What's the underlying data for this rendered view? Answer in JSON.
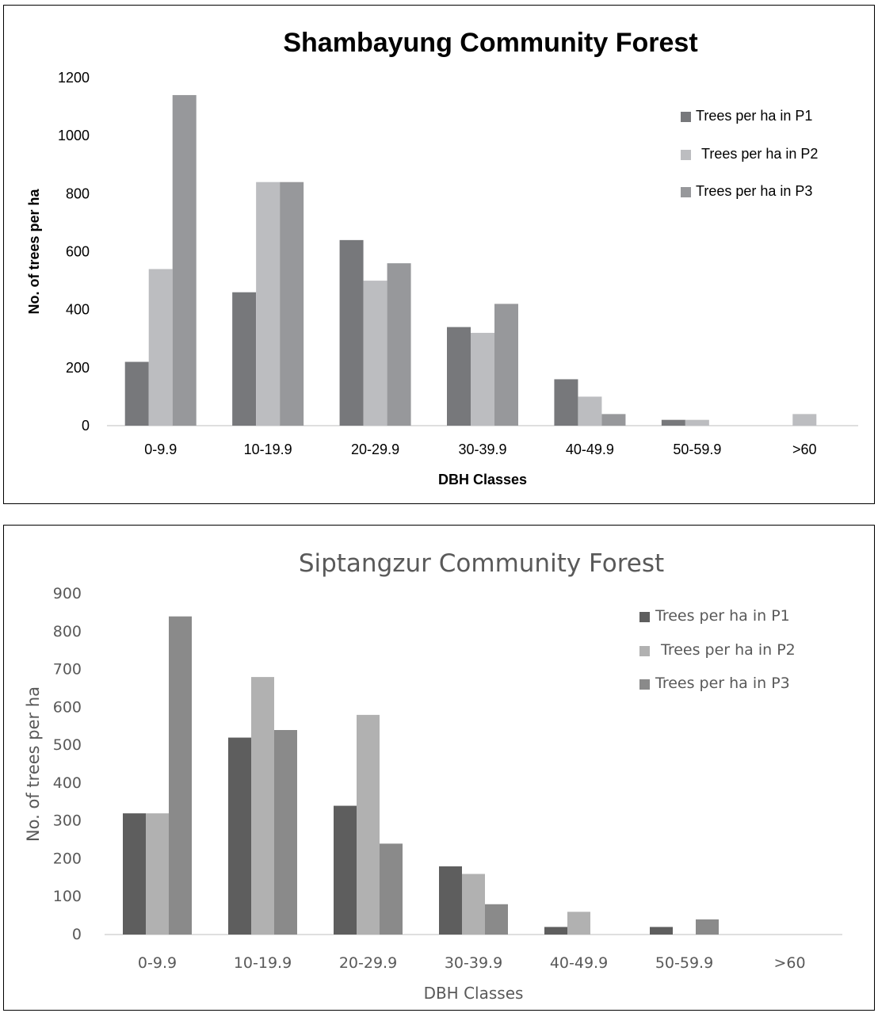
{
  "chart_data": [
    {
      "type": "bar",
      "title": "Shambayung Community Forest",
      "xlabel": "DBH Classes",
      "ylabel": "No. of trees per ha",
      "ylim": [
        0,
        1200
      ],
      "yticks": [
        0,
        200,
        400,
        600,
        800,
        1000,
        1200
      ],
      "categories": [
        "0-9.9",
        "10-19.9",
        "20-29.9",
        "30-39.9",
        "40-49.9",
        "50-59.9",
        ">60"
      ],
      "series": [
        {
          "name": "Trees per ha in P1",
          "color": "#77787b",
          "values": [
            220,
            460,
            640,
            340,
            160,
            20,
            0
          ]
        },
        {
          "name": "Trees per ha in P2",
          "color": "#bcbdc0",
          "values": [
            540,
            840,
            500,
            320,
            100,
            20,
            40
          ]
        },
        {
          "name": "Trees per ha in P3",
          "color": "#97989b",
          "values": [
            1140,
            840,
            560,
            420,
            40,
            0,
            0
          ]
        }
      ],
      "grid": false,
      "legend_position": "top-right"
    },
    {
      "type": "bar",
      "title": "Siptangzur Community Forest",
      "xlabel": "DBH Classes",
      "ylabel": "No. of trees per ha",
      "ylim": [
        0,
        900
      ],
      "yticks": [
        0,
        100,
        200,
        300,
        400,
        500,
        600,
        700,
        800,
        900
      ],
      "categories": [
        "0-9.9",
        "10-19.9",
        "20-29.9",
        "30-39.9",
        "40-49.9",
        "50-59.9",
        ">60"
      ],
      "series": [
        {
          "name": "Trees per ha in P1",
          "color": "#5e5e5e",
          "values": [
            320,
            520,
            340,
            180,
            20,
            20,
            0
          ]
        },
        {
          "name": "Trees per ha in P2",
          "color": "#b1b1b1",
          "values": [
            320,
            680,
            580,
            160,
            60,
            0,
            0
          ]
        },
        {
          "name": "Trees per ha in P3",
          "color": "#8a8a8a",
          "values": [
            840,
            540,
            240,
            80,
            0,
            40,
            0
          ]
        }
      ],
      "grid": false,
      "legend_position": "top-right"
    }
  ]
}
